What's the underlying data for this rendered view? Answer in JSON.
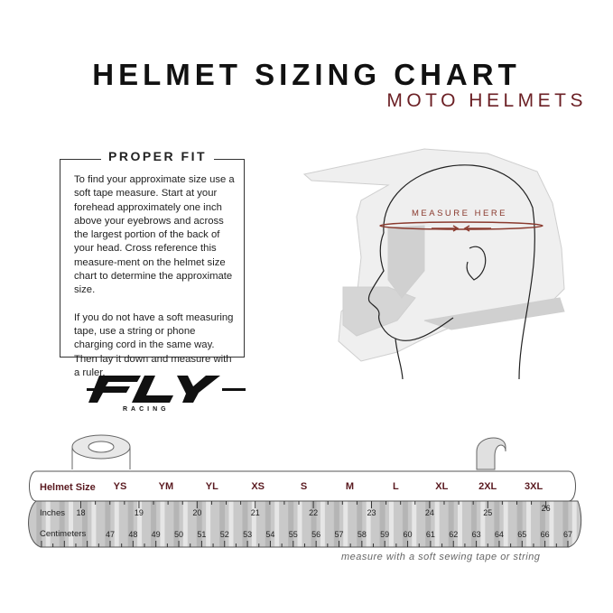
{
  "header": {
    "title": "HELMET SIZING CHART",
    "subtitle": "MOTO HELMETS"
  },
  "proper_fit": {
    "heading": "PROPER FIT",
    "paragraph1": "To find your approximate size use a soft tape measure. Start at your forehead approximately one inch above your eyebrows and across the largest portion of the back of your head. Cross reference this measure-ment on the helmet size chart to determine the approximate size.",
    "paragraph2": "If you do not have a soft measuring tape, use a string or phone charging cord in the same way. Then lay it down and measure with a ruler."
  },
  "logo": {
    "brand": "FLY",
    "sub": "RACING"
  },
  "illustration": {
    "measure_label": "MEASURE HERE",
    "accent": "#8a3a2e"
  },
  "tape": {
    "size_label": "Helmet Size",
    "sizes": [
      "YS",
      "YM",
      "YL",
      "XS",
      "S",
      "M",
      "L",
      "XL",
      "2XL",
      "3XL"
    ],
    "inches_label": "Inches",
    "inches": [
      18,
      19,
      20,
      21,
      22,
      23,
      24,
      25,
      26
    ],
    "cm_label": "Centimeters",
    "cm": [
      47,
      48,
      49,
      50,
      51,
      52,
      53,
      54,
      55,
      56,
      57,
      58,
      59,
      60,
      61,
      62,
      63,
      64,
      65,
      66,
      67
    ],
    "hint": "measure with a soft sewing tape or string",
    "size_color": "#5a1a20"
  }
}
